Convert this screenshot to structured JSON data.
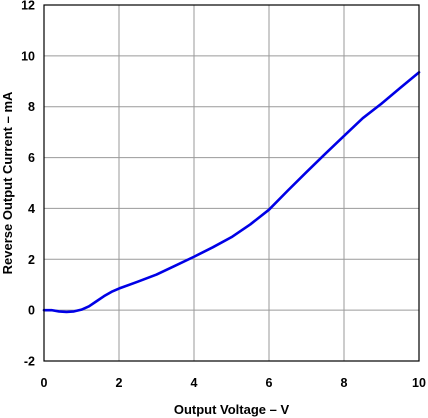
{
  "chart_data": {
    "type": "line",
    "xlabel": "Output Voltage – V",
    "ylabel": "Reverse Output Current – mA",
    "xlim": [
      0,
      10
    ],
    "ylim": [
      -2,
      12
    ],
    "x_ticks": [
      "0",
      "2",
      "4",
      "6",
      "8",
      "10"
    ],
    "y_ticks": [
      "-2",
      "0",
      "2",
      "4",
      "6",
      "8",
      "10",
      "12"
    ],
    "grid": true,
    "series": [
      {
        "color": "#0000e6",
        "x": [
          0,
          0.2,
          0.4,
          0.6,
          0.8,
          1.0,
          1.2,
          1.4,
          1.6,
          1.8,
          2.0,
          2.5,
          3.0,
          3.5,
          4.0,
          4.5,
          5.0,
          5.5,
          6.0,
          6.5,
          7.0,
          7.5,
          8.0,
          8.5,
          9.0,
          9.5,
          10.0
        ],
        "y": [
          0,
          0,
          -0.05,
          -0.07,
          -0.05,
          0.02,
          0.15,
          0.35,
          0.55,
          0.72,
          0.85,
          1.12,
          1.4,
          1.75,
          2.1,
          2.47,
          2.87,
          3.37,
          3.95,
          4.7,
          5.43,
          6.15,
          6.85,
          7.55,
          8.12,
          8.74,
          9.35
        ]
      }
    ]
  }
}
